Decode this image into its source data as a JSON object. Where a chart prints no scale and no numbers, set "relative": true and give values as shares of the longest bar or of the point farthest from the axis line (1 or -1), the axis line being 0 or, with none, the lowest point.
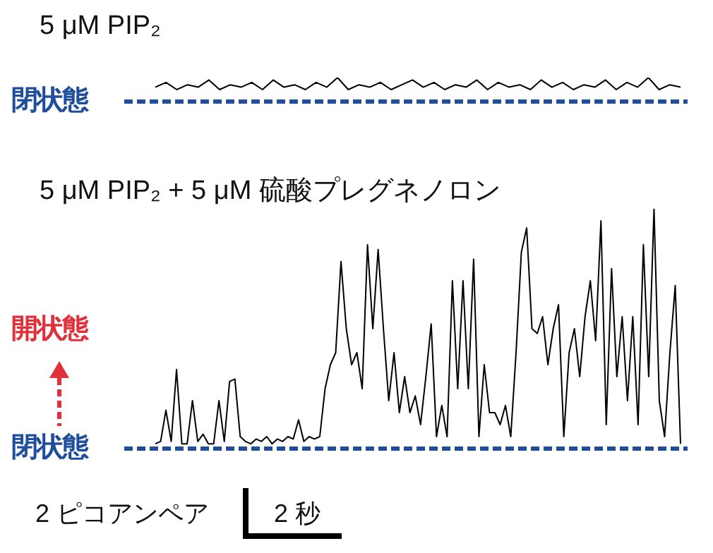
{
  "chart_data": [
    {
      "type": "line",
      "title": "5 μM PIP₂",
      "relative": true,
      "marker": "none",
      "categories": [
        null,
        null,
        null,
        null,
        null,
        null,
        null,
        null,
        null,
        null,
        null,
        null,
        null,
        null,
        null,
        null,
        null,
        null,
        null,
        null,
        null,
        null,
        null,
        null,
        null,
        null,
        null,
        null,
        null,
        null,
        null,
        null,
        null,
        null,
        null,
        null,
        null,
        null,
        null,
        null,
        null,
        null,
        null,
        null,
        null,
        null,
        null,
        null,
        null,
        null
      ],
      "series": [
        {
          "color": "#000000",
          "values": [
            0.6,
            0.8,
            0.5,
            0.7,
            0.6,
            0.9,
            0.5,
            0.7,
            0.6,
            0.8,
            0.5,
            0.9,
            0.6,
            0.7,
            0.5,
            0.8,
            0.6,
            1.0,
            0.5,
            0.7,
            0.6,
            0.8,
            0.5,
            0.7,
            0.9,
            0.6,
            0.8,
            0.5,
            0.7,
            0.6,
            0.9,
            0.5,
            0.8,
            0.6,
            0.7,
            0.5,
            0.9,
            0.6,
            0.8,
            0.5,
            0.7,
            0.6,
            0.9,
            0.5,
            0.8,
            0.6,
            1.0,
            0.5,
            0.7,
            0.6
          ]
        }
      ],
      "ref_lines": [
        {
          "axis": "y",
          "value": 0,
          "label": "閉状態",
          "color": "#1f4e9c",
          "line_style": "dashed"
        }
      ]
    },
    {
      "type": "line",
      "title": "5 μM PIP₂ + 5 μM 硫酸プレグネノロン",
      "relative": true,
      "marker": "none",
      "categories": [
        null,
        null,
        null,
        null,
        null,
        null,
        null,
        null,
        null,
        null,
        null,
        null,
        null,
        null,
        null,
        null,
        null,
        null,
        null,
        null,
        null,
        null,
        null,
        null,
        null,
        null,
        null,
        null,
        null,
        null,
        null,
        null,
        null,
        null,
        null,
        null,
        null,
        null,
        null,
        null,
        null,
        null,
        null,
        null,
        null,
        null,
        null,
        null,
        null,
        null,
        null,
        null,
        null,
        null,
        null,
        null,
        null,
        null,
        null,
        null,
        null,
        null,
        null,
        null,
        null,
        null,
        null,
        null,
        null,
        null,
        null,
        null,
        null,
        null,
        null,
        null,
        null,
        null,
        null,
        null,
        null,
        null,
        null,
        null,
        null,
        null,
        null,
        null,
        null,
        null,
        null,
        null,
        null,
        null,
        null,
        null,
        null,
        null,
        null,
        null
      ],
      "series": [
        {
          "color": "#000000",
          "values": [
            0.02,
            0.03,
            0.16,
            0.03,
            0.33,
            0.02,
            0.02,
            0.2,
            0.03,
            0.06,
            0.02,
            0.02,
            0.2,
            0.03,
            0.28,
            0.29,
            0.05,
            0.03,
            0.02,
            0.04,
            0.03,
            0.05,
            0.02,
            0.04,
            0.03,
            0.05,
            0.04,
            0.12,
            0.03,
            0.05,
            0.04,
            0.05,
            0.25,
            0.35,
            0.4,
            0.78,
            0.5,
            0.35,
            0.4,
            0.25,
            0.85,
            0.5,
            0.83,
            0.5,
            0.2,
            0.4,
            0.15,
            0.3,
            0.15,
            0.22,
            0.1,
            0.3,
            0.52,
            0.05,
            0.18,
            0.05,
            0.7,
            0.25,
            0.7,
            0.25,
            0.79,
            0.05,
            0.35,
            0.15,
            0.15,
            0.1,
            0.18,
            0.05,
            0.4,
            0.82,
            0.92,
            0.5,
            0.48,
            0.55,
            0.35,
            0.5,
            0.6,
            0.05,
            0.4,
            0.5,
            0.3,
            0.55,
            0.7,
            0.45,
            0.95,
            0.1,
            0.75,
            0.3,
            0.55,
            0.2,
            0.55,
            0.1,
            0.85,
            0.3,
            1.0,
            0.2,
            0.05,
            0.4,
            0.68,
            0.02
          ]
        }
      ],
      "ref_lines": [
        {
          "axis": "y",
          "value": 0,
          "label": "閉状態",
          "color": "#1f4e9c",
          "line_style": "dashed"
        }
      ],
      "annotations": [
        "開状態",
        "2 ピコアンペア",
        "2 秒"
      ]
    }
  ]
}
